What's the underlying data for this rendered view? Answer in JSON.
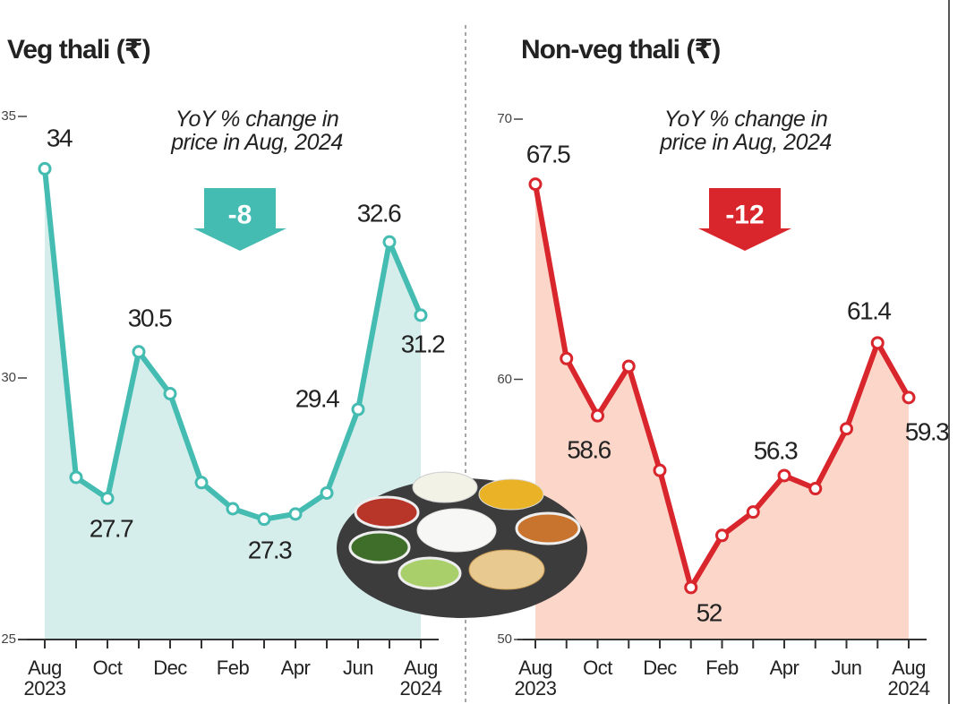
{
  "chart_data": [
    {
      "type": "line",
      "title": "Veg thali (₹)",
      "color": "#45bcb1",
      "area_color": "#d5eeeb",
      "categories": [
        "Aug\n2023",
        null,
        "Oct",
        null,
        "Dec",
        null,
        "Feb",
        null,
        "Apr",
        null,
        "Jun",
        null,
        "Aug\n2024"
      ],
      "values": [
        34,
        28.1,
        27.7,
        30.5,
        29.7,
        28.0,
        27.5,
        27.3,
        27.4,
        27.8,
        29.4,
        32.6,
        31.2
      ],
      "value_labels": [
        "34",
        null,
        "27.7",
        "30.5",
        null,
        null,
        null,
        "27.3",
        null,
        null,
        "29.4",
        "32.6",
        "31.2"
      ],
      "ylim": [
        25,
        35
      ],
      "yticks": [
        25,
        30,
        35
      ],
      "annotation": "YoY % change in\nprice in Aug, 2024",
      "yoy_change": -8
    },
    {
      "type": "line",
      "title": "Non-veg thali (₹)",
      "color": "#d9262c",
      "area_color": "#fbd6c9",
      "categories": [
        "Aug\n2023",
        null,
        "Oct",
        null,
        "Dec",
        null,
        "Feb",
        null,
        "Apr",
        null,
        "Jun",
        null,
        "Aug\n2024"
      ],
      "values": [
        67.5,
        60.8,
        58.6,
        60.5,
        56.5,
        52,
        54.0,
        54.9,
        56.3,
        55.8,
        58.1,
        61.4,
        59.3
      ],
      "value_labels": [
        "67.5",
        null,
        "58.6",
        null,
        null,
        "52",
        null,
        null,
        "56.3",
        null,
        null,
        "61.4",
        "59.3"
      ],
      "ylim": [
        50,
        70
      ],
      "yticks": [
        50,
        60,
        70
      ],
      "annotation": "YoY % change in\nprice in Aug, 2024",
      "yoy_change": -12
    }
  ]
}
